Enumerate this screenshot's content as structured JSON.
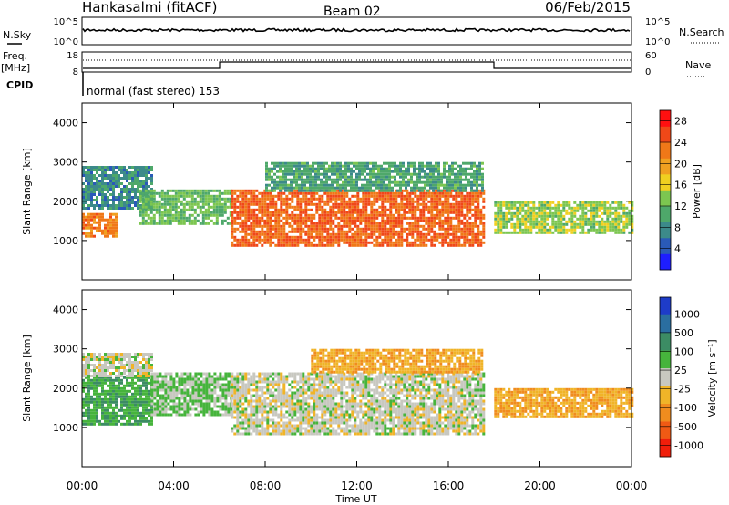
{
  "header": {
    "title": "Hankasalmi (fitACF)",
    "beam": "Beam 02",
    "date": "06/Feb/2015"
  },
  "strips": {
    "nsky_label": "N.Sky",
    "nsky_ticks": [
      "10^5",
      "10^0"
    ],
    "nsearch_label": "N.Search",
    "nsearch_ticks": [
      "10^5",
      "10^0"
    ],
    "freq_label": "Freq.",
    "freq_unit": "[MHz]",
    "freq_ticks": [
      "18",
      "8"
    ],
    "nave_label": "Nave",
    "nave_ticks": [
      "60",
      "0"
    ],
    "cpid_label": "CPID",
    "cpid_text": "normal (fast stereo) 153"
  },
  "chart_data": [
    {
      "type": "heatmap",
      "panel": "power",
      "ylabel": "Slant Range [km]",
      "y_ticks": [
        "1000",
        "2000",
        "3000",
        "4000"
      ],
      "ylim": [
        0,
        4500
      ],
      "x_ticks": [
        "00:00",
        "04:00",
        "08:00",
        "12:00",
        "16:00",
        "20:00",
        "00:00"
      ],
      "xlim_hours": [
        0,
        24
      ],
      "colorbar": {
        "label": "Power [dB]",
        "ticks": [
          "4",
          "8",
          "12",
          "16",
          "20",
          "24",
          "28"
        ],
        "range": [
          0,
          30
        ],
        "colors": [
          "#1e1eff",
          "#2a5ab8",
          "#3c8a8a",
          "#4ea86a",
          "#7cc650",
          "#f0d020",
          "#f0a020",
          "#f07818",
          "#f04818",
          "#ff1010"
        ]
      },
      "regions": [
        {
          "t0": 0.0,
          "t1": 1.5,
          "r0": 1100,
          "r1": 1700,
          "value": 22
        },
        {
          "t0": 0.0,
          "t1": 3.0,
          "r0": 1800,
          "r1": 2900,
          "value": 8
        },
        {
          "t0": 2.5,
          "t1": 6.5,
          "r0": 1400,
          "r1": 2300,
          "value": 12
        },
        {
          "t0": 6.5,
          "t1": 17.5,
          "r0": 900,
          "r1": 2300,
          "value": 24
        },
        {
          "t0": 8.0,
          "t1": 17.5,
          "r0": 2300,
          "r1": 3000,
          "value": 10
        },
        {
          "t0": 18.0,
          "t1": 24.0,
          "r0": 1200,
          "r1": 2000,
          "value": 14
        }
      ]
    },
    {
      "type": "heatmap",
      "panel": "velocity",
      "ylabel": "Slant Range [km]",
      "y_ticks": [
        "1000",
        "2000",
        "3000",
        "4000"
      ],
      "ylim": [
        0,
        4500
      ],
      "x_ticks": [
        "00:00",
        "04:00",
        "08:00",
        "12:00",
        "16:00",
        "20:00",
        "00:00"
      ],
      "xlabel": "Time UT",
      "xlim_hours": [
        0,
        24
      ],
      "colorbar": {
        "label": "Velocity [m s⁻¹]",
        "ticks": [
          "1000",
          "500",
          "100",
          "25",
          "-25",
          "-100",
          "-500",
          "-1000"
        ],
        "range": [
          -1000,
          1000
        ],
        "colors": [
          "#1e3cc8",
          "#2a6ea0",
          "#3c8c64",
          "#46b43c",
          "#c8c8c0",
          "#f0b428",
          "#f08c1e",
          "#f05a14",
          "#f01e0a"
        ]
      },
      "regions": [
        {
          "t0": 0.0,
          "t1": 3.0,
          "r0": 1100,
          "r1": 2300,
          "value": 300
        },
        {
          "t0": 0.0,
          "t1": 3.0,
          "r0": 2300,
          "r1": 2900,
          "value": 0
        },
        {
          "t0": 3.0,
          "t1": 6.5,
          "r0": 1300,
          "r1": 2400,
          "value": 150
        },
        {
          "t0": 6.5,
          "t1": 17.5,
          "r0": 800,
          "r1": 2400,
          "value": 0
        },
        {
          "t0": 10.0,
          "t1": 17.5,
          "r0": 2400,
          "r1": 3000,
          "value": -300
        },
        {
          "t0": 18.0,
          "t1": 24.0,
          "r0": 1300,
          "r1": 2000,
          "value": -300
        }
      ]
    }
  ]
}
